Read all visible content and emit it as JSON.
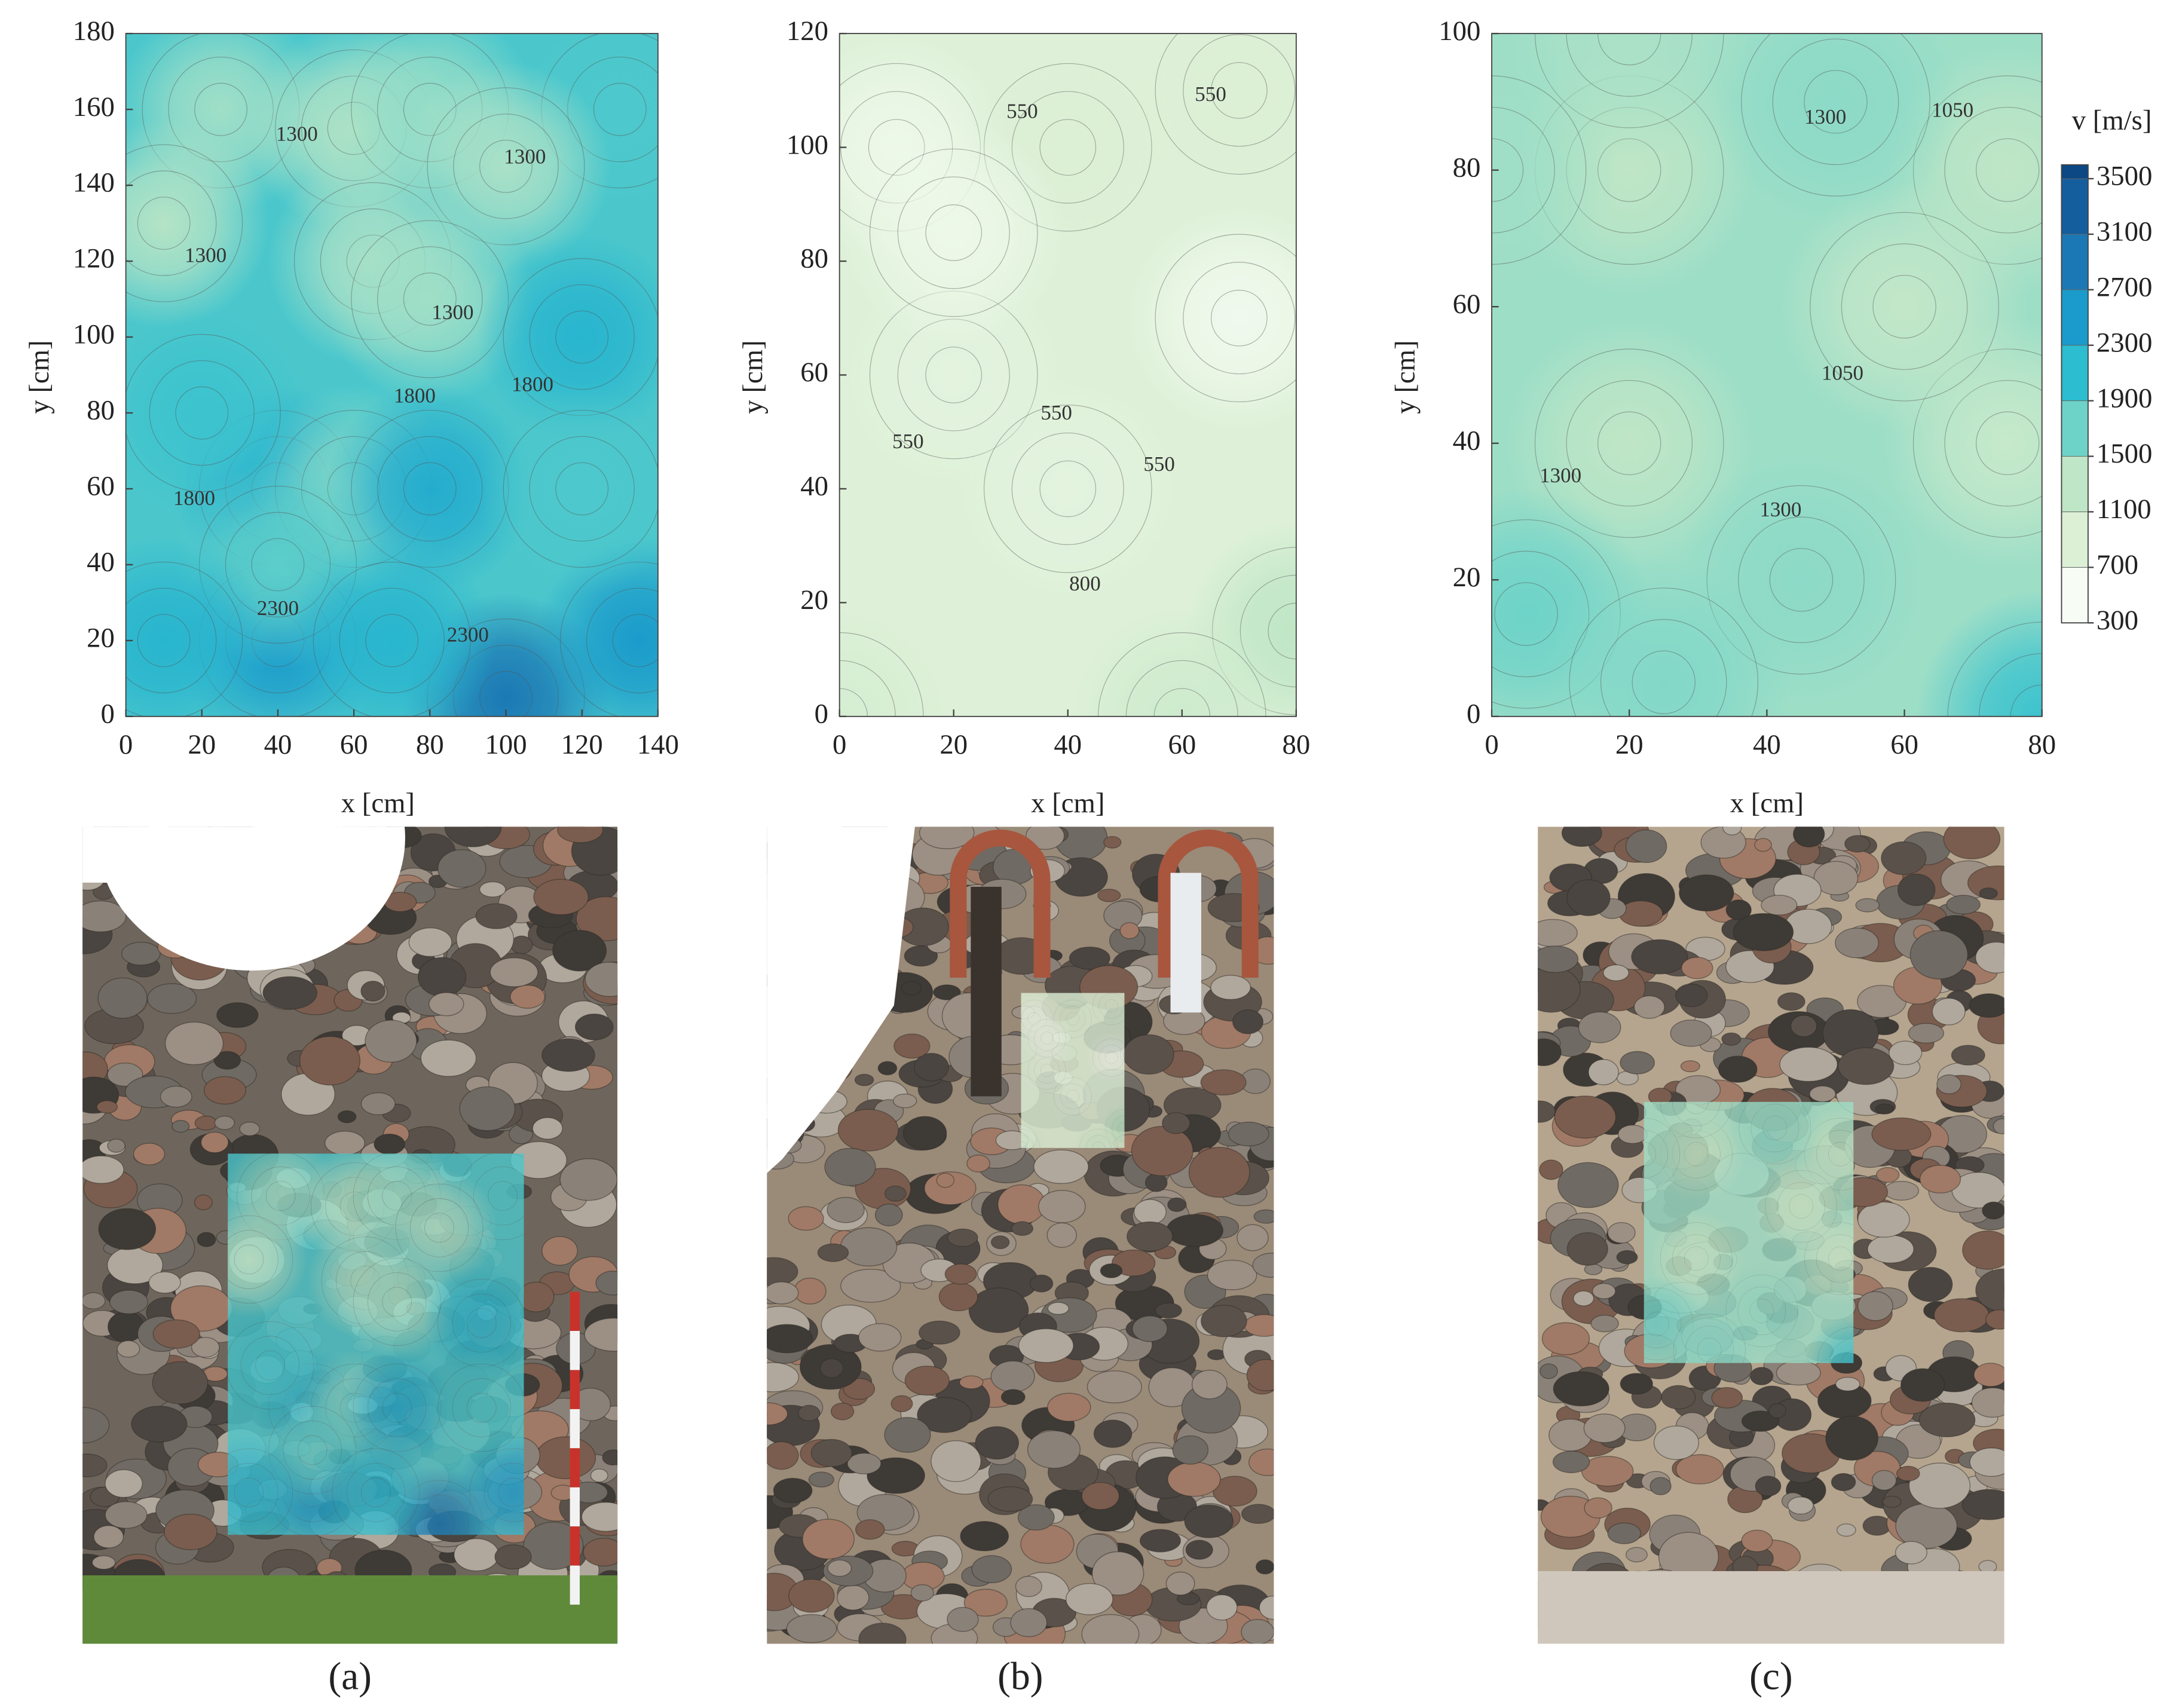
{
  "chart_data": [
    {
      "type": "contour",
      "xlim": [
        0,
        140
      ],
      "ylim": [
        0,
        180
      ],
      "xticks": [
        0,
        20,
        40,
        60,
        80,
        100,
        120,
        140
      ],
      "yticks": [
        0,
        20,
        40,
        60,
        80,
        100,
        120,
        140,
        160,
        180
      ],
      "x_label": "x [cm]",
      "y_label": "y [cm]",
      "panel_label": "(a)",
      "field": [
        {
          "x": 25,
          "y": 160,
          "v": 1250
        },
        {
          "x": 60,
          "y": 155,
          "v": 1150
        },
        {
          "x": 80,
          "y": 160,
          "v": 1300
        },
        {
          "x": 130,
          "y": 160,
          "v": 1700
        },
        {
          "x": 10,
          "y": 130,
          "v": 1150
        },
        {
          "x": 65,
          "y": 120,
          "v": 1200
        },
        {
          "x": 100,
          "y": 145,
          "v": 1200
        },
        {
          "x": 80,
          "y": 110,
          "v": 1250
        },
        {
          "x": 120,
          "y": 100,
          "v": 2000
        },
        {
          "x": 40,
          "y": 60,
          "v": 2100
        },
        {
          "x": 60,
          "y": 60,
          "v": 1400
        },
        {
          "x": 80,
          "y": 60,
          "v": 2100
        },
        {
          "x": 40,
          "y": 20,
          "v": 2300
        },
        {
          "x": 100,
          "y": 5,
          "v": 2700
        },
        {
          "x": 135,
          "y": 20,
          "v": 2300
        },
        {
          "x": 20,
          "y": 80,
          "v": 1800
        },
        {
          "x": 120,
          "y": 60,
          "v": 1700
        },
        {
          "x": 40,
          "y": 40,
          "v": 1600
        },
        {
          "x": 10,
          "y": 20,
          "v": 2000
        },
        {
          "x": 70,
          "y": 20,
          "v": 2000
        }
      ],
      "contour_labels": [
        {
          "level": 1300,
          "x": 45,
          "y": 153
        },
        {
          "level": 1300,
          "x": 21,
          "y": 121
        },
        {
          "level": 1300,
          "x": 105,
          "y": 147
        },
        {
          "level": 1300,
          "x": 86,
          "y": 106
        },
        {
          "level": 1800,
          "x": 76,
          "y": 84
        },
        {
          "level": 1800,
          "x": 107,
          "y": 87
        },
        {
          "level": 1800,
          "x": 18,
          "y": 57
        },
        {
          "level": 2300,
          "x": 40,
          "y": 28
        },
        {
          "level": 2300,
          "x": 90,
          "y": 21
        }
      ]
    },
    {
      "type": "contour",
      "xlim": [
        0,
        80
      ],
      "ylim": [
        0,
        120
      ],
      "xticks": [
        0,
        20,
        40,
        60,
        80
      ],
      "yticks": [
        0,
        20,
        40,
        60,
        80,
        100,
        120
      ],
      "x_label": "x [cm]",
      "y_label": "y [cm]",
      "panel_label": "(b)",
      "field": [
        {
          "x": 10,
          "y": 100,
          "v": 450
        },
        {
          "x": 70,
          "y": 70,
          "v": 400
        },
        {
          "x": 40,
          "y": 100,
          "v": 700
        },
        {
          "x": 80,
          "y": 15,
          "v": 1100
        },
        {
          "x": 70,
          "y": 110,
          "v": 700
        },
        {
          "x": 20,
          "y": 60,
          "v": 600
        },
        {
          "x": 0,
          "y": 0,
          "v": 800
        },
        {
          "x": 60,
          "y": 0,
          "v": 900
        },
        {
          "x": 40,
          "y": 40,
          "v": 600
        },
        {
          "x": 20,
          "y": 85,
          "v": 450
        }
      ],
      "contour_labels": [
        {
          "level": 550,
          "x": 32,
          "y": 106
        },
        {
          "level": 550,
          "x": 65,
          "y": 109
        },
        {
          "level": 550,
          "x": 12,
          "y": 48
        },
        {
          "level": 550,
          "x": 38,
          "y": 53
        },
        {
          "level": 550,
          "x": 56,
          "y": 44
        },
        {
          "level": 800,
          "x": 43,
          "y": 23
        }
      ]
    },
    {
      "type": "contour",
      "xlim": [
        0,
        80
      ],
      "ylim": [
        0,
        100
      ],
      "xticks": [
        0,
        20,
        40,
        60,
        80
      ],
      "yticks": [
        0,
        20,
        40,
        60,
        80,
        100
      ],
      "x_label": "x [cm]",
      "y_label": "y [cm]",
      "panel_label": "(c)",
      "field": [
        {
          "x": 20,
          "y": 80,
          "v": 1100
        },
        {
          "x": 20,
          "y": 40,
          "v": 1100
        },
        {
          "x": 75,
          "y": 40,
          "v": 1000
        },
        {
          "x": 75,
          "y": 80,
          "v": 1100
        },
        {
          "x": 5,
          "y": 15,
          "v": 1500
        },
        {
          "x": 80,
          "y": 0,
          "v": 1800
        },
        {
          "x": 50,
          "y": 90,
          "v": 1350
        },
        {
          "x": 20,
          "y": 100,
          "v": 1200
        },
        {
          "x": 45,
          "y": 20,
          "v": 1350
        },
        {
          "x": 0,
          "y": 80,
          "v": 1250
        },
        {
          "x": 60,
          "y": 60,
          "v": 1050
        },
        {
          "x": 25,
          "y": 5,
          "v": 1400
        }
      ],
      "contour_labels": [
        {
          "level": 1300,
          "x": 48.5,
          "y": 87.5
        },
        {
          "level": 1050,
          "x": 67,
          "y": 88.5
        },
        {
          "level": 1050,
          "x": 51,
          "y": 50
        },
        {
          "level": 1300,
          "x": 10,
          "y": 35
        },
        {
          "level": 1300,
          "x": 42,
          "y": 30
        }
      ],
      "colorbar": {
        "label": "v [m/s]",
        "lim": [
          300,
          3600
        ],
        "ticks": [
          300,
          700,
          1100,
          1500,
          1900,
          2300,
          2700,
          3100,
          3500
        ],
        "colors": [
          "#f7fcf5",
          "#dcf0d6",
          "#bfe6c6",
          "#6dd3c8",
          "#2cbdd0",
          "#1a9bcb",
          "#1b78b4",
          "#145e9e",
          "#0b4884"
        ]
      }
    }
  ]
}
